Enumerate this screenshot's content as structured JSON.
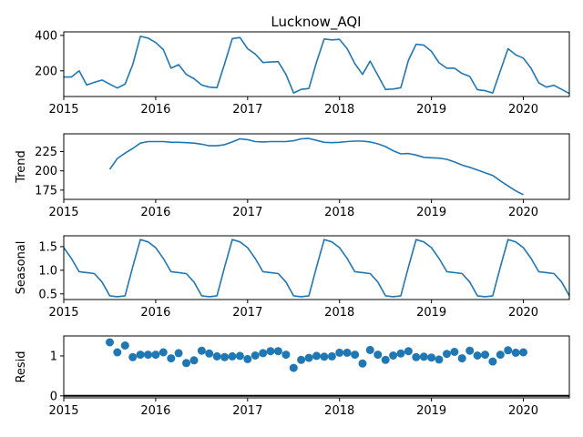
{
  "chart_data": [
    {
      "type": "line",
      "panel": "observed",
      "title": "Lucknow_AQI",
      "ylabel": "",
      "xlim": [
        2015.0,
        2020.5
      ],
      "ylim": [
        55,
        420
      ],
      "yticks": [
        200,
        400
      ],
      "xticks": [
        2015,
        2016,
        2017,
        2018,
        2019,
        2020
      ],
      "x": [
        2015.0,
        2015.083,
        2015.167,
        2015.25,
        2015.333,
        2015.417,
        2015.5,
        2015.583,
        2015.667,
        2015.75,
        2015.833,
        2015.917,
        2016.0,
        2016.083,
        2016.167,
        2016.25,
        2016.333,
        2016.417,
        2016.5,
        2016.583,
        2016.667,
        2016.75,
        2016.833,
        2016.917,
        2017.0,
        2017.083,
        2017.167,
        2017.25,
        2017.333,
        2017.417,
        2017.5,
        2017.583,
        2017.667,
        2017.75,
        2017.833,
        2017.917,
        2018.0,
        2018.083,
        2018.167,
        2018.25,
        2018.333,
        2018.417,
        2018.5,
        2018.583,
        2018.667,
        2018.75,
        2018.833,
        2018.917,
        2019.0,
        2019.083,
        2019.167,
        2019.25,
        2019.333,
        2019.417,
        2019.5,
        2019.583,
        2019.667,
        2019.75,
        2019.833,
        2019.917,
        2020.0,
        2020.083,
        2020.167,
        2020.25,
        2020.333,
        2020.417,
        2020.5
      ],
      "y": [
        165,
        165,
        200,
        120,
        135,
        148,
        125,
        103,
        125,
        235,
        395,
        385,
        360,
        320,
        215,
        235,
        180,
        155,
        120,
        108,
        105,
        240,
        382,
        388,
        325,
        295,
        247,
        250,
        252,
        180,
        75,
        95,
        100,
        250,
        380,
        375,
        378,
        325,
        240,
        180,
        255,
        175,
        95,
        97,
        105,
        260,
        350,
        345,
        310,
        245,
        215,
        215,
        185,
        168,
        93,
        88,
        75,
        200,
        325,
        290,
        272,
        215,
        132,
        108,
        118,
        95,
        72
      ]
    },
    {
      "type": "line",
      "panel": "trend",
      "ylabel": "Trend",
      "xlim": [
        2015.0,
        2020.5
      ],
      "ylim": [
        163,
        248
      ],
      "yticks": [
        175,
        200,
        225
      ],
      "xticks": [
        2015,
        2016,
        2017,
        2018,
        2019,
        2020
      ],
      "x": [
        2015.5,
        2015.583,
        2015.667,
        2015.75,
        2015.833,
        2015.917,
        2016.0,
        2016.083,
        2016.167,
        2016.25,
        2016.333,
        2016.417,
        2016.5,
        2016.583,
        2016.667,
        2016.75,
        2016.833,
        2016.917,
        2017.0,
        2017.083,
        2017.167,
        2017.25,
        2017.333,
        2017.417,
        2017.5,
        2017.583,
        2017.667,
        2017.75,
        2017.833,
        2017.917,
        2018.0,
        2018.083,
        2018.167,
        2018.25,
        2018.333,
        2018.417,
        2018.5,
        2018.583,
        2018.667,
        2018.75,
        2018.833,
        2018.917,
        2019.0,
        2019.083,
        2019.167,
        2019.25,
        2019.333,
        2019.417,
        2019.5,
        2019.583,
        2019.667,
        2019.75,
        2019.833,
        2019.917,
        2020.0
      ],
      "y": [
        202,
        216,
        223,
        229,
        236,
        238,
        238,
        238,
        237,
        237,
        236.5,
        236,
        234.5,
        232.5,
        232.5,
        234,
        237.5,
        241.5,
        240.5,
        238,
        237.5,
        238,
        238,
        238,
        239,
        241.5,
        242,
        239.5,
        237,
        236.5,
        237,
        238,
        238.5,
        238.5,
        237.5,
        235,
        231.5,
        226,
        222,
        222.5,
        220.5,
        217.5,
        217,
        216.5,
        215,
        211.5,
        207.5,
        204.5,
        201,
        197.5,
        194,
        187,
        180.5,
        174,
        169
      ]
    },
    {
      "type": "line",
      "panel": "seasonal",
      "ylabel": "Seasonal",
      "xlim": [
        2015.0,
        2020.5
      ],
      "ylim": [
        0.38,
        1.73
      ],
      "yticks": [
        0.5,
        1.0,
        1.5
      ],
      "ytick_labels": [
        "0.5",
        "1.0",
        "1.5"
      ],
      "xticks": [
        2015,
        2016,
        2017,
        2018,
        2019,
        2020
      ],
      "pattern_by_month": [
        1.48,
        1.25,
        0.97,
        0.95,
        0.93,
        0.75,
        0.46,
        0.44,
        0.46,
        1.07,
        1.65,
        1.6
      ],
      "x_start": 2015.0,
      "n_points": 67
    },
    {
      "type": "scatter",
      "panel": "resid",
      "ylabel": "Resid",
      "xlim": [
        2015.0,
        2020.5
      ],
      "ylim": [
        -0.05,
        1.5
      ],
      "yticks": [
        0,
        1
      ],
      "xticks": [
        2015,
        2016,
        2017,
        2018,
        2019,
        2020
      ],
      "baseline": 0,
      "x": [
        2015.5,
        2015.583,
        2015.667,
        2015.75,
        2015.833,
        2015.917,
        2016.0,
        2016.083,
        2016.167,
        2016.25,
        2016.333,
        2016.417,
        2016.5,
        2016.583,
        2016.667,
        2016.75,
        2016.833,
        2016.917,
        2017.0,
        2017.083,
        2017.167,
        2017.25,
        2017.333,
        2017.417,
        2017.5,
        2017.583,
        2017.667,
        2017.75,
        2017.833,
        2017.917,
        2018.0,
        2018.083,
        2018.167,
        2018.25,
        2018.333,
        2018.417,
        2018.5,
        2018.583,
        2018.667,
        2018.75,
        2018.833,
        2018.917,
        2019.0,
        2019.083,
        2019.167,
        2019.25,
        2019.333,
        2019.417,
        2019.5,
        2019.583,
        2019.667,
        2019.75,
        2019.833,
        2019.917,
        2020.0
      ],
      "y": [
        1.34,
        1.09,
        1.26,
        0.97,
        1.03,
        1.03,
        1.03,
        1.09,
        0.94,
        1.07,
        0.82,
        0.89,
        1.13,
        1.06,
        0.99,
        0.97,
        0.99,
        1.0,
        0.92,
        1.01,
        1.07,
        1.12,
        1.12,
        1.03,
        0.7,
        0.9,
        0.95,
        1.0,
        0.98,
        0.99,
        1.08,
        1.08,
        1.03,
        0.81,
        1.15,
        1.03,
        0.9,
        1.01,
        1.06,
        1.12,
        0.97,
        0.98,
        0.96,
        0.91,
        1.05,
        1.1,
        0.94,
        1.13,
        1.01,
        1.03,
        0.86,
        1.03,
        1.14,
        1.08,
        1.09
      ]
    }
  ]
}
